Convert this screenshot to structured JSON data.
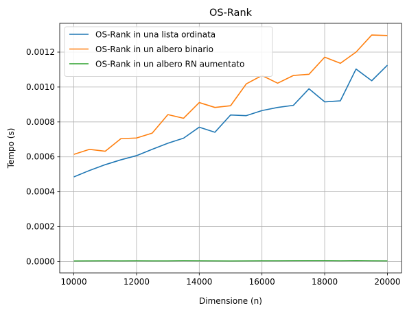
{
  "chart_data": {
    "type": "line",
    "title": "OS-Rank",
    "xlabel": "Dimensione (n)",
    "ylabel": "Tempo (s)",
    "xlim": [
      9550,
      20450
    ],
    "ylim": [
      -6.5e-05,
      0.001365
    ],
    "xticks": [
      10000,
      12000,
      14000,
      16000,
      18000,
      20000
    ],
    "xtick_labels": [
      "10000",
      "12000",
      "14000",
      "16000",
      "18000",
      "20000"
    ],
    "yticks": [
      0.0,
      0.0002,
      0.0004,
      0.0006,
      0.0008,
      0.001,
      0.0012
    ],
    "ytick_labels": [
      "0.0000",
      "0.0002",
      "0.0004",
      "0.0006",
      "0.0008",
      "0.0010",
      "0.0012"
    ],
    "grid": true,
    "legend_position": "top-left",
    "x": [
      10000,
      10500,
      11000,
      11500,
      12000,
      12500,
      13000,
      13500,
      14000,
      14500,
      15000,
      15500,
      16000,
      16500,
      17000,
      17500,
      18000,
      18500,
      19000,
      19500,
      20000
    ],
    "series": [
      {
        "name": "OS-Rank in una lista ordinata",
        "color": "#1f77b4",
        "values": [
          0.000485,
          0.000522,
          0.000555,
          0.000583,
          0.000607,
          0.000643,
          0.000678,
          0.000707,
          0.00077,
          0.000741,
          0.00084,
          0.000836,
          0.000865,
          0.000883,
          0.000895,
          0.00099,
          0.000915,
          0.000921,
          0.001103,
          0.001036,
          0.001125
        ]
      },
      {
        "name": "OS-Rank in un albero binario",
        "color": "#ff7f0e",
        "values": [
          0.000614,
          0.000643,
          0.000632,
          0.000704,
          0.000708,
          0.000736,
          0.000842,
          0.000821,
          0.000911,
          0.000883,
          0.000893,
          0.001018,
          0.001066,
          0.001022,
          0.001066,
          0.001073,
          0.001171,
          0.001136,
          0.0012,
          0.001298,
          0.001295
        ]
      },
      {
        "name": "OS-Rank in un albero RN aumentato",
        "color": "#2ca02c",
        "values": [
          3.5e-06,
          4e-06,
          4.5e-06,
          4e-06,
          4.5e-06,
          4e-06,
          4e-06,
          5e-06,
          4.5e-06,
          4e-06,
          3.5e-06,
          4e-06,
          4.5e-06,
          4.5e-06,
          5e-06,
          5.5e-06,
          5.5e-06,
          4.5e-06,
          5.5e-06,
          4.5e-06,
          4e-06
        ]
      }
    ]
  }
}
